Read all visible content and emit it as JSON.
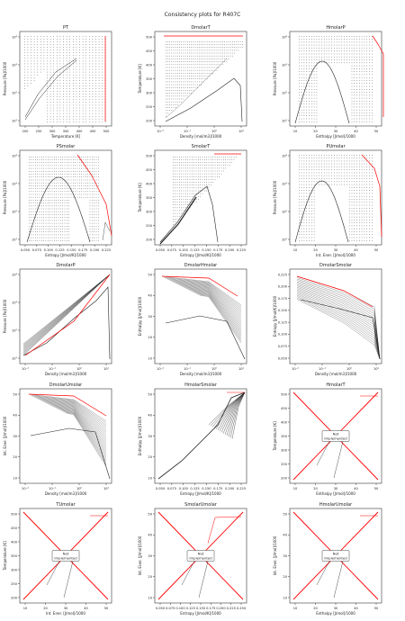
{
  "figure_title": "Consistency plots for R407C",
  "not_implemented_text": [
    "Not",
    "Implemented"
  ],
  "colors": {
    "isolines": "#222222",
    "boundary": "#ff0000",
    "saturation": "#222222"
  },
  "chart_data": [
    {
      "type": "scatter",
      "title": "PT",
      "xlabel": "Temperature [K]",
      "ylabel": "Pressure [Pa]/1000",
      "xlim": [
        190,
        510
      ],
      "ylim": [
        1,
        5
      ],
      "yscale": "log",
      "xticks": [
        "200",
        "250",
        "300",
        "350",
        "400",
        "450",
        "500"
      ],
      "yticks": [
        "10¹",
        "10²",
        "10³",
        "10⁴"
      ],
      "not_implemented": false
    },
    {
      "type": "scatter",
      "title": "DmolarT",
      "xlabel": "Density [mol/m3]/1000",
      "ylabel": "Temperature [K]",
      "xlim": [
        -2.5,
        1.3
      ],
      "ylim": [
        190,
        510
      ],
      "xscale": "log",
      "xticks": [
        "10⁻²",
        "10⁻¹",
        "10⁰",
        "10¹"
      ],
      "yticks": [
        "200",
        "250",
        "300",
        "350",
        "400",
        "450",
        "500"
      ],
      "not_implemented": false
    },
    {
      "type": "scatter",
      "title": "HmolarP",
      "xlabel": "Enthalpy [J/mol]/1000",
      "ylabel": "Pressure [Pa]/1000",
      "xlim": [
        8,
        57
      ],
      "ylim": [
        1,
        5
      ],
      "yscale": "log",
      "xticks": [
        "10",
        "20",
        "30",
        "40",
        "50"
      ],
      "yticks": [
        "10¹",
        "10²",
        "10³",
        "10⁴"
      ],
      "not_implemented": false
    },
    {
      "type": "scatter",
      "title": "PSmolar",
      "xlabel": "Entropy [J/mol/K]/1000",
      "ylabel": "Pressure [Pa]/1000",
      "xlim": [
        0.04,
        0.232
      ],
      "ylim": [
        1,
        5
      ],
      "yscale": "log",
      "xticks": [
        "0.050",
        "0.075",
        "0.100",
        "0.125",
        "0.150",
        "0.175",
        "0.200",
        "0.225"
      ],
      "yticks": [
        "10¹",
        "10²",
        "10³",
        "10⁴"
      ],
      "not_implemented": false
    },
    {
      "type": "scatter",
      "title": "SmolarT",
      "xlabel": "Entropy [J/mol/K]/1000",
      "ylabel": "Temperature [K]",
      "xlim": [
        0.04,
        0.232
      ],
      "ylim": [
        190,
        510
      ],
      "xticks": [
        "0.050",
        "0.075",
        "0.100",
        "0.125",
        "0.150",
        "0.175",
        "0.200",
        "0.225"
      ],
      "yticks": [
        "200",
        "250",
        "300",
        "350",
        "400",
        "450",
        "500"
      ],
      "not_implemented": false
    },
    {
      "type": "scatter",
      "title": "PUmolar",
      "xlabel": "Int. Ener. [J/mol]/1000",
      "ylabel": "Pressure [Pa]/1000",
      "xlim": [
        5,
        53
      ],
      "ylim": [
        1,
        5
      ],
      "yscale": "log",
      "xticks": [
        "10",
        "20",
        "30",
        "40",
        "50"
      ],
      "yticks": [
        "10¹",
        "10²",
        "10³",
        "10⁴"
      ],
      "not_implemented": false
    },
    {
      "type": "scatter",
      "title": "DmolarP",
      "xlabel": "Density [mol/m3]/1000",
      "ylabel": "Pressure [Pa]/1000",
      "xlim": [
        -2.5,
        1.3
      ],
      "ylim": [
        1,
        5
      ],
      "xscale": "log",
      "yscale": "log",
      "xticks": [
        "10⁻²",
        "10⁻¹",
        "10⁰",
        "10¹"
      ],
      "yticks": [
        "10¹",
        "10²",
        "10³",
        "10⁴"
      ],
      "not_implemented": false
    },
    {
      "type": "scatter",
      "title": "DmolarHmolar",
      "xlabel": "Density [mol/m3]/1000",
      "ylabel": "Enthalpy [J/mol]/1000",
      "xlim": [
        -2.5,
        1.3
      ],
      "ylim": [
        8,
        57
      ],
      "xscale": "log",
      "xticks": [
        "10⁻²",
        "10⁻¹",
        "10⁰",
        "10¹"
      ],
      "yticks": [
        "10",
        "20",
        "30",
        "40",
        "50"
      ],
      "not_implemented": false
    },
    {
      "type": "scatter",
      "title": "DmolarSmolar",
      "xlabel": "Density [mol/m3]/1000",
      "ylabel": "Entropy [J/mol/K]/1000",
      "xlim": [
        -2.5,
        1.3
      ],
      "ylim": [
        0.04,
        0.232
      ],
      "xscale": "log",
      "xticks": [
        "10⁻²",
        "10⁻¹",
        "10⁰",
        "10¹"
      ],
      "yticks": [
        "0.050",
        "0.075",
        "0.100",
        "0.125",
        "0.150",
        "0.175",
        "0.200",
        "0.225"
      ],
      "not_implemented": false
    },
    {
      "type": "scatter",
      "title": "DmolarUmolar",
      "xlabel": "Density [mol/m3]/1000",
      "ylabel": "Int. Ener. [J/mol]/1000",
      "xlim": [
        -2.5,
        1.3
      ],
      "ylim": [
        5,
        53
      ],
      "xscale": "log",
      "xticks": [
        "10⁻²",
        "10⁻¹",
        "10⁰",
        "10¹"
      ],
      "yticks": [
        "10",
        "20",
        "30",
        "40",
        "50"
      ],
      "not_implemented": false
    },
    {
      "type": "scatter",
      "title": "HmolarSmolar",
      "xlabel": "Entropy [J/mol/K]/1000",
      "ylabel": "Enthalpy [J/mol]/1000",
      "xlim": [
        0.04,
        0.232
      ],
      "ylim": [
        8,
        57
      ],
      "xticks": [
        "0.050",
        "0.075",
        "0.100",
        "0.125",
        "0.150",
        "0.175",
        "0.200",
        "0.225"
      ],
      "yticks": [
        "10",
        "20",
        "30",
        "40",
        "50"
      ],
      "not_implemented": false
    },
    {
      "type": "scatter",
      "title": "HmolarT",
      "xlabel": "Enthalpy [J/mol]/1000",
      "ylabel": "Temperature [K]",
      "xlim": [
        5,
        57
      ],
      "ylim": [
        175,
        520
      ],
      "xticks": [
        "10",
        "20",
        "30",
        "40",
        "50"
      ],
      "yticks": [
        "200",
        "250",
        "300",
        "350",
        "400",
        "450",
        "500"
      ],
      "not_implemented": true
    },
    {
      "type": "scatter",
      "title": "TUmolar",
      "xlabel": "Int. Ener. [J/mol]/1000",
      "ylabel": "Temperature [K]",
      "xlim": [
        5,
        57
      ],
      "ylim": [
        175,
        520
      ],
      "xticks": [
        "10",
        "20",
        "30",
        "40",
        "50"
      ],
      "yticks": [
        "200",
        "250",
        "300",
        "350",
        "400",
        "450",
        "500"
      ],
      "not_implemented": true
    },
    {
      "type": "scatter",
      "title": "SmolarUmolar",
      "xlabel": "Entropy [J/mol/K]/1000",
      "ylabel": "Int. Ener. [J/mol]/1000",
      "xlim": [
        0.04,
        0.26
      ],
      "ylim": [
        5,
        57
      ],
      "xticks": [
        "0.050",
        "0.075",
        "0.100",
        "0.125",
        "0.150",
        "0.175",
        "0.200",
        "0.225",
        "0.250"
      ],
      "yticks": [
        "10",
        "20",
        "30",
        "40",
        "50"
      ],
      "not_implemented": true
    },
    {
      "type": "scatter",
      "title": "HmolarUmolar",
      "xlabel": "Enthalpy [J/mol]/1000",
      "ylabel": "Int. Ener. [J/mol]/1000",
      "xlim": [
        5,
        57
      ],
      "ylim": [
        5,
        57
      ],
      "xticks": [
        "10",
        "20",
        "30",
        "40",
        "50"
      ],
      "yticks": [
        "10",
        "20",
        "30",
        "40",
        "50"
      ],
      "not_implemented": true
    }
  ]
}
